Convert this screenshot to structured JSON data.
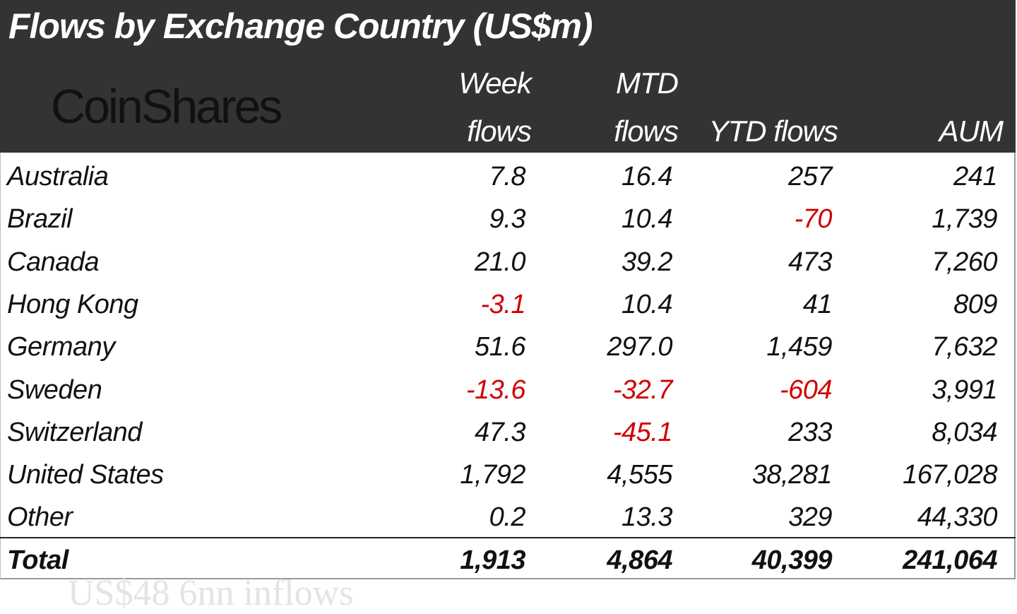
{
  "chart_data": {
    "type": "table",
    "title": "Flows by Exchange Country (US$m)",
    "logo": "CoinShares",
    "columns": [
      {
        "line1": "Week",
        "line2": "flows"
      },
      {
        "line1": "MTD",
        "line2": "flows"
      },
      {
        "line1": "",
        "line2": "YTD flows"
      },
      {
        "line1": "",
        "line2": "AUM"
      }
    ],
    "rows": [
      {
        "country": "Australia",
        "week": "7.8",
        "mtd": "16.4",
        "ytd": "257",
        "aum": "241"
      },
      {
        "country": "Brazil",
        "week": "9.3",
        "mtd": "10.4",
        "ytd": "-70",
        "aum": "1,739"
      },
      {
        "country": "Canada",
        "week": "21.0",
        "mtd": "39.2",
        "ytd": "473",
        "aum": "7,260"
      },
      {
        "country": "Hong Kong",
        "week": "-3.1",
        "mtd": "10.4",
        "ytd": "41",
        "aum": "809"
      },
      {
        "country": "Germany",
        "week": "51.6",
        "mtd": "297.0",
        "ytd": "1,459",
        "aum": "7,632"
      },
      {
        "country": "Sweden",
        "week": "-13.6",
        "mtd": "-32.7",
        "ytd": "-604",
        "aum": "3,991"
      },
      {
        "country": "Switzerland",
        "week": "47.3",
        "mtd": "-45.1",
        "ytd": "233",
        "aum": "8,034"
      },
      {
        "country": "United States",
        "week": "1,792",
        "mtd": "4,555",
        "ytd": "38,281",
        "aum": "167,028"
      },
      {
        "country": "Other",
        "week": "0.2",
        "mtd": "13.3",
        "ytd": "329",
        "aum": "44,330"
      }
    ],
    "total": {
      "label": "Total",
      "week": "1,913",
      "mtd": "4,864",
      "ytd": "40,399",
      "aum": "241,064"
    },
    "colors": {
      "header_bg": "#333333",
      "header_text": "#ffffff",
      "negative": "#d00000"
    }
  },
  "background_text": "US$48 6nn inflows"
}
